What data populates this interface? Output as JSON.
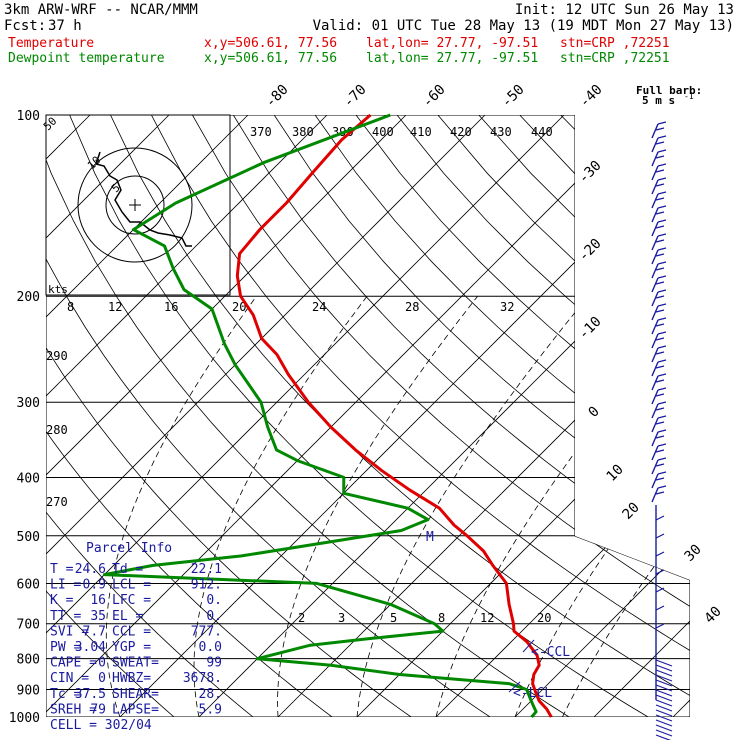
{
  "header": {
    "title": "3km ARW-WRF -- NCAR/MMM",
    "init": "Init: 12 UTC Sun 26 May 13",
    "fcst_label": "Fcst:",
    "fcst_value": "37 h",
    "valid": "Valid: 01 UTC Tue 28 May 13 (19 MDT Mon 27 May 13)",
    "temp_line": {
      "name": "Temperature",
      "xy": "x,y=506.61, 77.56",
      "latlon": "lat,lon= 27.77, -97.51",
      "stn": "stn=CRP ,72251"
    },
    "dew_line": {
      "name": "Dewpoint temperature",
      "xy": "x,y=506.61, 77.56",
      "latlon": "lat,lon= 27.77, -97.51",
      "stn": "stn=CRP ,72251"
    }
  },
  "colors": {
    "temperature": "#e00000",
    "dewpoint": "#008800",
    "annotation": "#1a1aa0"
  },
  "barb_key": {
    "title": "Full barb:",
    "value": "5 m s",
    "exponent": "-1"
  },
  "hodograph": {
    "units_label": "kts",
    "ring_labels": [
      "10",
      "5"
    ],
    "corner_label": "50"
  },
  "mixing_ratio_labels": [
    "8",
    "12",
    "16",
    "20",
    "24",
    "28",
    "32"
  ],
  "lower_mixing_labels": [
    "2",
    "3",
    "5",
    "8",
    "12",
    "20"
  ],
  "theta_e_labels": [
    "370",
    "380",
    "390",
    "400",
    "410",
    "420",
    "430",
    "440"
  ],
  "left_theta_labels": [
    "290",
    "280",
    "270"
  ],
  "ccl_label": "<-CCL",
  "lcl_label": "<-LCL",
  "moist_marker": "M",
  "parcel_info": {
    "title": "Parcel Info",
    "rows": [
      [
        "T  =",
        "24.6",
        "Td =",
        "22.1"
      ],
      [
        "LI =",
        "0.9",
        "LCL =",
        "912."
      ],
      [
        "K  =",
        "16",
        "LFC =",
        "0."
      ],
      [
        "TT =",
        "35",
        "EL  =",
        "0."
      ],
      [
        "SVI =",
        "7.7",
        "CCL =",
        "777."
      ],
      [
        "PW =",
        "3.04",
        "YGP =",
        "0.0"
      ],
      [
        "CAPE =",
        "0",
        "SWEAT=",
        "99"
      ],
      [
        "CIN =",
        "0",
        "HWBZ=",
        "3678."
      ],
      [
        "Tc =",
        "37.5",
        "SHEAR=",
        "28."
      ],
      [
        "SREH =",
        "79",
        "LAPSE=",
        "5.9"
      ],
      [
        "CELL = 302/04",
        "",
        "",
        ""
      ]
    ]
  },
  "chart_data": {
    "type": "line",
    "title": "",
    "xlabel": "",
    "ylabel": "",
    "y_scale": "log-pressure",
    "pressure_levels": [
      100,
      200,
      300,
      400,
      500,
      600,
      700,
      800,
      900,
      1000
    ],
    "isotherm_labels": [
      "-80",
      "-70",
      "-60",
      "-50",
      "-40",
      "-30",
      "-20",
      "-10",
      "0",
      "10",
      "20",
      "30",
      "40"
    ],
    "series": [
      {
        "name": "Temperature",
        "color": "#e00000",
        "points": [
          [
            100,
            -74.5
          ],
          [
            110,
            -75
          ],
          [
            125,
            -74.5
          ],
          [
            140,
            -74
          ],
          [
            155,
            -74
          ],
          [
            170,
            -73.5
          ],
          [
            185,
            -71
          ],
          [
            200,
            -68
          ],
          [
            215,
            -64
          ],
          [
            235,
            -60
          ],
          [
            250,
            -56
          ],
          [
            270,
            -52
          ],
          [
            300,
            -46
          ],
          [
            330,
            -40
          ],
          [
            360,
            -34
          ],
          [
            390,
            -28
          ],
          [
            420,
            -22
          ],
          [
            450,
            -16
          ],
          [
            480,
            -12
          ],
          [
            500,
            -9
          ],
          [
            530,
            -5
          ],
          [
            560,
            -2
          ],
          [
            600,
            2
          ],
          [
            650,
            5
          ],
          [
            700,
            8
          ],
          [
            720,
            9
          ],
          [
            750,
            12
          ],
          [
            790,
            15
          ],
          [
            820,
            16.5
          ],
          [
            850,
            17
          ],
          [
            880,
            18
          ],
          [
            910,
            19.5
          ],
          [
            940,
            21
          ],
          [
            970,
            23
          ],
          [
            1000,
            24.6
          ]
        ]
      },
      {
        "name": "Dewpoint temperature",
        "color": "#008800",
        "points": [
          [
            100,
            -72
          ],
          [
            120,
            -82
          ],
          [
            140,
            -88
          ],
          [
            155,
            -90
          ],
          [
            165,
            -84
          ],
          [
            180,
            -80
          ],
          [
            195,
            -76
          ],
          [
            210,
            -70
          ],
          [
            240,
            -64
          ],
          [
            260,
            -60
          ],
          [
            300,
            -52
          ],
          [
            330,
            -48
          ],
          [
            360,
            -44
          ],
          [
            375,
            -40
          ],
          [
            400,
            -32
          ],
          [
            425,
            -30
          ],
          [
            450,
            -20
          ],
          [
            470,
            -16
          ],
          [
            490,
            -18
          ],
          [
            510,
            -25
          ],
          [
            540,
            -35
          ],
          [
            560,
            -45
          ],
          [
            580,
            -50
          ],
          [
            600,
            -22
          ],
          [
            650,
            -10
          ],
          [
            700,
            -2
          ],
          [
            720,
            0
          ],
          [
            740,
            -8
          ],
          [
            760,
            -15
          ],
          [
            800,
            -20
          ],
          [
            820,
            -10
          ],
          [
            850,
            0
          ],
          [
            870,
            10
          ],
          [
            880,
            15
          ],
          [
            900,
            18
          ],
          [
            920,
            19
          ],
          [
            940,
            20
          ],
          [
            960,
            21
          ],
          [
            980,
            22
          ],
          [
            1000,
            22.1
          ]
        ]
      }
    ]
  }
}
